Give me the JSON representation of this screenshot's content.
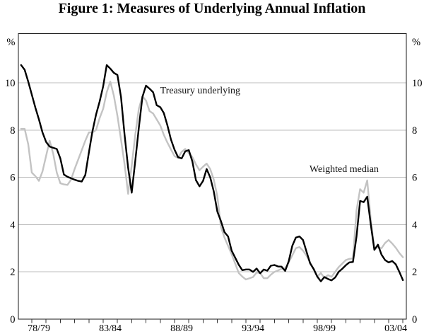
{
  "title": "Figure 1: Measures of Underlying Annual Inflation",
  "chart_data": {
    "type": "line",
    "title": "Figure 1: Measures of Underlying Annual Inflation",
    "unit_label_left": "%",
    "unit_label_right": "%",
    "grid": true,
    "legend_position": "in-plot text annotations",
    "ylim": [
      0,
      12.08
    ],
    "y_ticks": [
      0,
      2,
      4,
      6,
      8,
      10
    ],
    "y_gridlines": [
      2,
      4,
      6,
      8,
      10
    ],
    "x_domain": [
      1977.56,
      2004.74
    ],
    "x_minor_ticks": {
      "start": 1978.5,
      "end": 2004.5,
      "step": 1
    },
    "x_tick_labels": [
      {
        "label": "78/79",
        "t": 1979.0
      },
      {
        "label": "83/84",
        "t": 1984.0
      },
      {
        "label": "88/89",
        "t": 1989.0
      },
      {
        "label": "93/94",
        "t": 1994.0
      },
      {
        "label": "98/99",
        "t": 1999.0
      },
      {
        "label": "03/04",
        "t": 2004.0
      }
    ],
    "frequency": "quarterly",
    "x_start": 1977.75,
    "x_step_years": 0.25,
    "n_points": 108,
    "series": [
      {
        "name": "Treasury underlying",
        "color": "#000000",
        "values": [
          10.75,
          10.55,
          10.05,
          9.5,
          8.95,
          8.45,
          7.9,
          7.5,
          7.3,
          7.25,
          7.2,
          6.8,
          6.12,
          6.02,
          5.96,
          5.9,
          5.85,
          5.82,
          6.1,
          7.05,
          7.95,
          8.65,
          9.2,
          9.85,
          10.75,
          10.6,
          10.42,
          10.33,
          9.4,
          7.8,
          6.4,
          5.35,
          6.7,
          8.1,
          9.4,
          9.88,
          9.75,
          9.6,
          9.05,
          8.97,
          8.72,
          8.2,
          7.6,
          7.17,
          6.85,
          6.8,
          7.1,
          7.15,
          6.67,
          5.88,
          5.62,
          5.85,
          6.35,
          6.0,
          5.4,
          4.55,
          4.15,
          3.68,
          3.5,
          2.9,
          2.6,
          2.3,
          2.07,
          2.1,
          2.1,
          2.0,
          2.14,
          1.94,
          2.1,
          2.05,
          2.26,
          2.29,
          2.23,
          2.22,
          2.04,
          2.45,
          3.1,
          3.45,
          3.5,
          3.35,
          2.85,
          2.36,
          2.12,
          1.8,
          1.6,
          1.78,
          1.7,
          1.64,
          1.76,
          2.0,
          2.13,
          2.28,
          2.4,
          2.42,
          3.5,
          5.0,
          4.95,
          5.18,
          4.0,
          2.93,
          3.15,
          2.73,
          2.5,
          2.4,
          2.46,
          2.32,
          2.0,
          1.65
        ]
      },
      {
        "name": "Weighted median",
        "color": "#c3c3c3",
        "values": [
          8.05,
          8.05,
          7.4,
          6.2,
          6.05,
          5.85,
          6.25,
          6.9,
          7.55,
          7.0,
          6.2,
          5.75,
          5.7,
          5.68,
          5.9,
          6.35,
          6.75,
          7.15,
          7.55,
          7.9,
          7.9,
          8.0,
          8.5,
          8.9,
          9.6,
          10.05,
          9.45,
          8.6,
          7.6,
          6.55,
          5.3,
          6.5,
          7.8,
          8.9,
          9.43,
          9.25,
          8.8,
          8.7,
          8.45,
          8.2,
          7.8,
          7.47,
          7.18,
          6.9,
          6.82,
          7.08,
          7.2,
          7.03,
          6.85,
          6.55,
          6.3,
          6.45,
          6.58,
          6.35,
          5.9,
          5.2,
          3.9,
          3.45,
          3.1,
          2.75,
          2.35,
          1.95,
          1.8,
          1.68,
          1.73,
          1.78,
          1.97,
          1.95,
          1.73,
          1.73,
          1.88,
          2.0,
          2.06,
          2.13,
          2.15,
          2.4,
          2.7,
          3.0,
          3.05,
          2.9,
          2.68,
          2.4,
          2.1,
          1.8,
          1.95,
          1.75,
          1.86,
          1.79,
          2.0,
          2.2,
          2.35,
          2.5,
          2.55,
          2.57,
          4.6,
          5.5,
          5.35,
          5.87,
          4.2,
          3.0,
          3.03,
          3.0,
          3.22,
          3.35,
          3.2,
          3.02,
          2.8,
          2.62
        ]
      }
    ],
    "annotations": [
      {
        "text": "Treasury underlying",
        "t": 1990.3,
        "v": 9.64
      },
      {
        "text": "Weighted median",
        "t": 2000.38,
        "v": 6.32
      }
    ],
    "colors": {
      "treasury_underlying": "#000000",
      "weighted_median": "#c3c3c3",
      "gridline": "#bdbdbd",
      "border": "#1a1a1a",
      "text": "#000000"
    }
  }
}
